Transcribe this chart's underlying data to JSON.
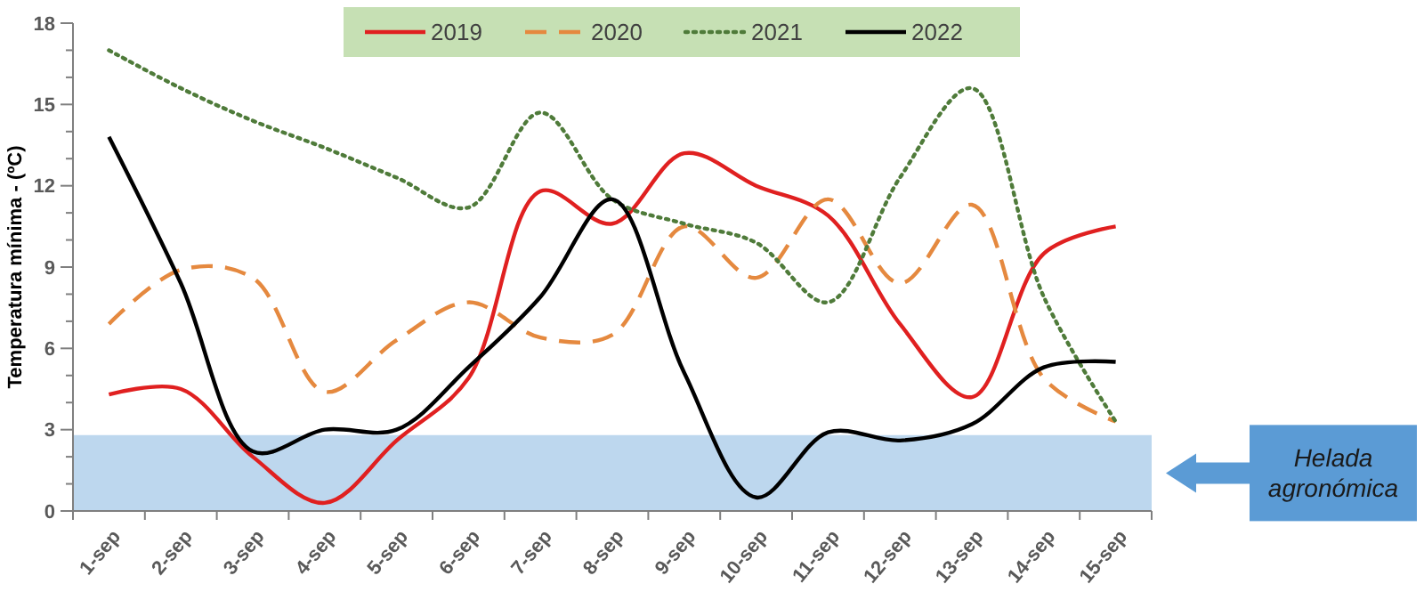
{
  "chart_data": {
    "type": "line",
    "ylabel": "Temperatura mínima - (ºC)",
    "categories": [
      "1-sep",
      "2-sep",
      "3-sep",
      "4-sep",
      "5-sep",
      "6-sep",
      "7-sep",
      "8-sep",
      "9-sep",
      "10-sep",
      "11-sep",
      "12-sep",
      "13-sep",
      "14-sep",
      "15-sep"
    ],
    "series": [
      {
        "name": "2019",
        "color": "#e02020",
        "line_style": "solid",
        "values": [
          4.3,
          4.5,
          2.0,
          0.3,
          2.6,
          4.9,
          11.8,
          10.6,
          13.2,
          12.0,
          10.9,
          6.9,
          4.2,
          9.5,
          10.5
        ]
      },
      {
        "name": "2020",
        "color": "#e5893f",
        "line_style": "dashed",
        "values": [
          6.9,
          8.9,
          8.6,
          4.4,
          6.3,
          7.7,
          6.4,
          6.5,
          10.5,
          8.6,
          11.5,
          8.4,
          11.3,
          4.9,
          3.3
        ]
      },
      {
        "name": "2021",
        "color": "#4f7b3a",
        "line_style": "dotted",
        "values": [
          17.0,
          15.6,
          14.4,
          13.4,
          12.3,
          11.2,
          14.7,
          11.5,
          10.6,
          9.9,
          7.7,
          12.3,
          15.6,
          7.9,
          3.3
        ]
      },
      {
        "name": "2022",
        "color": "#000000",
        "line_style": "solid",
        "values": [
          13.8,
          8.4,
          2.2,
          3.0,
          3.0,
          5.3,
          7.9,
          11.5,
          5.1,
          0.5,
          2.9,
          2.6,
          3.2,
          5.3,
          5.5
        ]
      }
    ],
    "ylim": [
      0,
      18
    ],
    "yticks": [
      0,
      {
        "value": 1,
        "label": null
      },
      {
        "value": 2,
        "label": null
      },
      3,
      {
        "value": 4,
        "label": null
      },
      {
        "value": 5,
        "label": null
      },
      6,
      {
        "value": 7,
        "label": null
      },
      {
        "value": 8,
        "label": null
      },
      9,
      {
        "value": 10,
        "label": null
      },
      {
        "value": 11,
        "label": null
      },
      12,
      {
        "value": 13,
        "label": null
      },
      {
        "value": 14,
        "label": null
      },
      15,
      {
        "value": 16,
        "label": null
      },
      {
        "value": 17,
        "label": null
      },
      18
    ],
    "bands": [
      {
        "axis": "y",
        "from": 0,
        "to": 2.8,
        "color": "#bdd7ee"
      }
    ],
    "annotations": [
      "Helada agronómica"
    ],
    "grid": false,
    "legend": "top",
    "marker": "none"
  }
}
